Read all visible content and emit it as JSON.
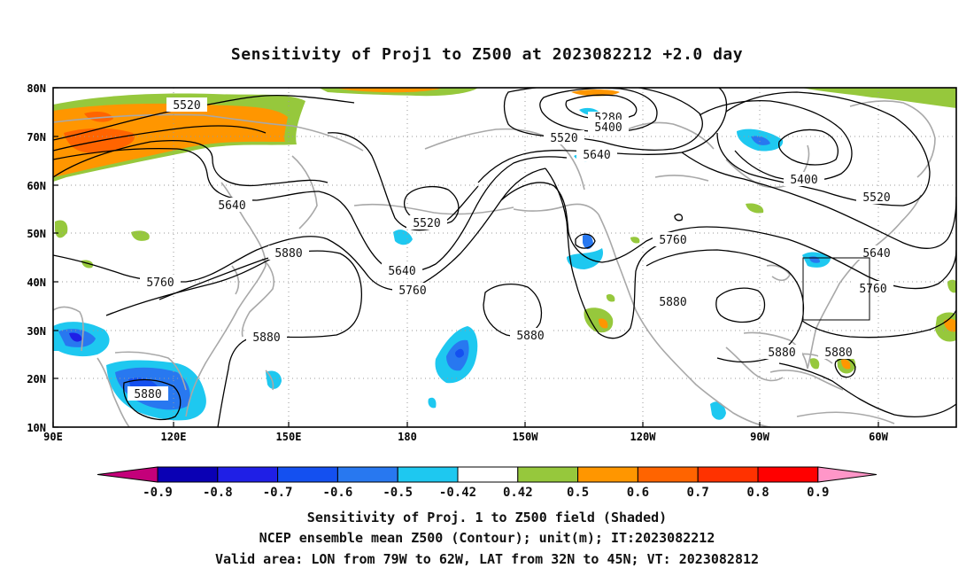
{
  "title": "Sensitivity of Proj1 to Z500 at 2023082212 +2.0 day",
  "map": {
    "lat_labels": [
      "80N",
      "70N",
      "60N",
      "50N",
      "40N",
      "30N",
      "20N",
      "10N"
    ],
    "lon_labels": [
      "90E",
      "120E",
      "150E",
      "180",
      "150W",
      "120W",
      "90W",
      "60W"
    ],
    "contour_labels": [
      "5520",
      "5640",
      "5760",
      "5880",
      "5880",
      "5520",
      "5640",
      "5760",
      "5280",
      "5400",
      "5520",
      "5640",
      "5760",
      "5880",
      "5880",
      "5400",
      "5520",
      "5640",
      "5760",
      "5880",
      "5880",
      "5880"
    ],
    "valid_box": {
      "lon": [
        "79W",
        "62W"
      ],
      "lat": [
        "32N",
        "45N"
      ]
    }
  },
  "colorbar": {
    "labels": [
      "-0.9",
      "-0.8",
      "-0.7",
      "-0.6",
      "-0.5",
      "-0.42",
      "0.42",
      "0.5",
      "0.6",
      "0.7",
      "0.8",
      "0.9"
    ],
    "colors": [
      "#c4007a",
      "#0a00b4",
      "#1f1fe6",
      "#1450f0",
      "#2878f0",
      "#1ec8f0",
      "#ffffff",
      "#96c83c",
      "#ff9600",
      "#ff6400",
      "#ff3200",
      "#ff0000",
      "#ff96c8"
    ]
  },
  "captions": {
    "line1": "Sensitivity of Proj. 1 to Z500 field (Shaded)",
    "line2": "NCEP ensemble mean Z500 (Contour); unit(m); IT:2023082212",
    "line3": "Valid area: LON from 79W to 62W, LAT from 32N to 45N; VT: 2023082812"
  },
  "colors": {
    "coast": "#a8a8a8",
    "contour": "#000000",
    "grid": "#9a9a9a"
  }
}
